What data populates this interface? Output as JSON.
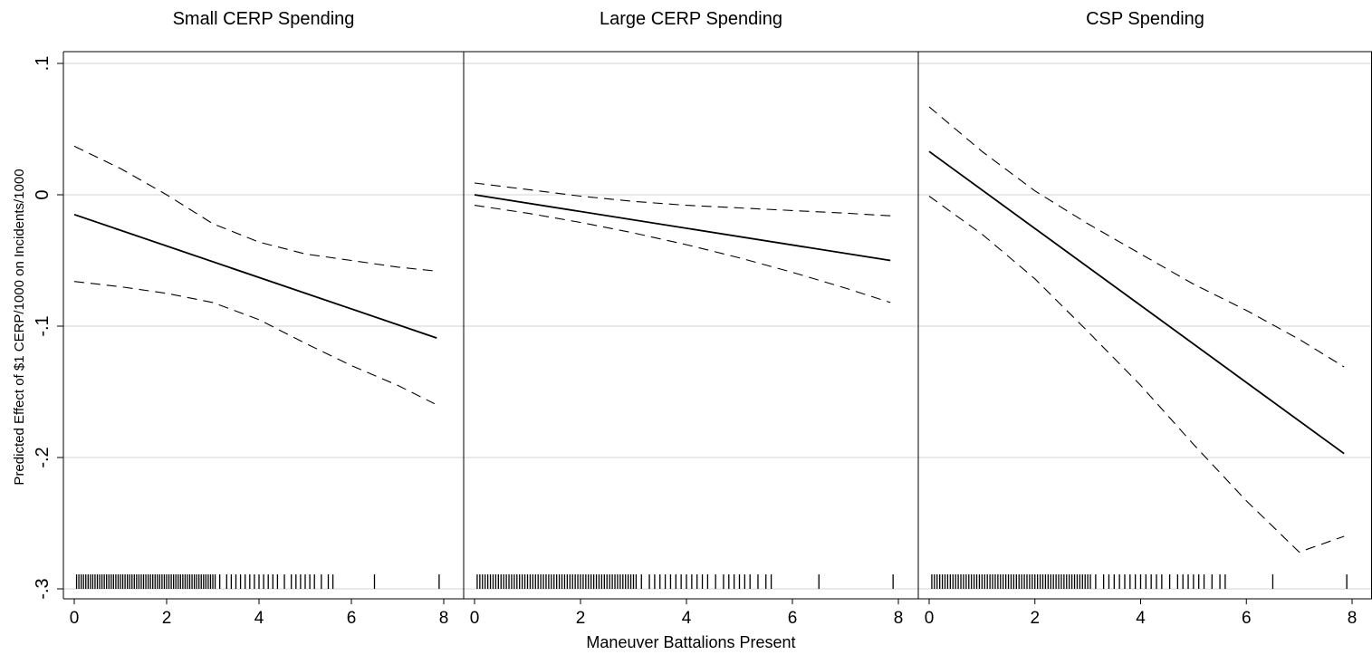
{
  "chart_data": {
    "type": "line",
    "xlabel": "Maneuver Battalions Present",
    "ylabel": "Predicted Effect of $1 CERP/1000 on Incidents/1000",
    "xlim": [
      0,
      8
    ],
    "ylim": [
      -0.3,
      0.1
    ],
    "x_ticks": [
      0,
      2,
      4,
      6,
      8
    ],
    "y_ticks": [
      -0.3,
      -0.2,
      -0.1,
      0,
      0.1
    ],
    "y_tick_labels": [
      "-.3",
      "-.2",
      "-.1",
      "0",
      ".1"
    ],
    "grid": "horizontal",
    "panels": [
      {
        "title": "Small CERP Spending",
        "series": [
          {
            "role": "estimate",
            "style": "solid",
            "x": [
              0,
              7.85
            ],
            "y": [
              -0.015,
              -0.109
            ]
          },
          {
            "role": "upper",
            "style": "dashed",
            "x": [
              0,
              1,
              2,
              3,
              4,
              5,
              6,
              7,
              7.8
            ],
            "y": [
              0.037,
              0.02,
              0.0,
              -0.022,
              -0.036,
              -0.045,
              -0.05,
              -0.055,
              -0.058
            ]
          },
          {
            "role": "lower",
            "style": "dashed",
            "x": [
              0,
              1,
              2,
              3,
              4,
              5,
              6,
              7,
              7.8
            ],
            "y": [
              -0.066,
              -0.07,
              -0.075,
              -0.082,
              -0.095,
              -0.113,
              -0.13,
              -0.145,
              -0.159
            ]
          }
        ]
      },
      {
        "title": "Large CERP Spending",
        "series": [
          {
            "role": "estimate",
            "style": "solid",
            "x": [
              0,
              7.85
            ],
            "y": [
              0.0,
              -0.05
            ]
          },
          {
            "role": "upper",
            "style": "dashed",
            "x": [
              0,
              1,
              2,
              3,
              4,
              5,
              6,
              7,
              7.85
            ],
            "y": [
              0.009,
              0.004,
              -0.001,
              -0.005,
              -0.008,
              -0.01,
              -0.012,
              -0.014,
              -0.016
            ]
          },
          {
            "role": "lower",
            "style": "dashed",
            "x": [
              0,
              1,
              2,
              3,
              4,
              5,
              6,
              7,
              7.85
            ],
            "y": [
              -0.008,
              -0.014,
              -0.021,
              -0.029,
              -0.038,
              -0.048,
              -0.059,
              -0.071,
              -0.082
            ]
          }
        ]
      },
      {
        "title": "CSP Spending",
        "series": [
          {
            "role": "estimate",
            "style": "solid",
            "x": [
              0,
              7.85
            ],
            "y": [
              0.033,
              -0.197
            ]
          },
          {
            "role": "upper",
            "style": "dashed",
            "x": [
              0,
              1,
              2,
              3,
              4,
              5,
              6,
              7,
              7.85
            ],
            "y": [
              0.067,
              0.033,
              0.003,
              -0.022,
              -0.045,
              -0.068,
              -0.088,
              -0.11,
              -0.131
            ]
          },
          {
            "role": "lower",
            "style": "dashed",
            "x": [
              0,
              1,
              2,
              3,
              4,
              5,
              6,
              7,
              7.85
            ],
            "y": [
              -0.001,
              -0.03,
              -0.064,
              -0.104,
              -0.145,
              -0.19,
              -0.233,
              -0.272,
              -0.26
            ]
          }
        ]
      }
    ],
    "rug_x": [
      0.05,
      0.1,
      0.15,
      0.2,
      0.25,
      0.3,
      0.35,
      0.4,
      0.45,
      0.5,
      0.55,
      0.6,
      0.65,
      0.7,
      0.75,
      0.8,
      0.85,
      0.9,
      0.95,
      1.0,
      1.05,
      1.1,
      1.15,
      1.2,
      1.25,
      1.3,
      1.35,
      1.4,
      1.45,
      1.5,
      1.55,
      1.6,
      1.65,
      1.7,
      1.75,
      1.8,
      1.85,
      1.9,
      1.95,
      2.0,
      2.05,
      2.1,
      2.15,
      2.2,
      2.25,
      2.3,
      2.35,
      2.4,
      2.45,
      2.5,
      2.55,
      2.6,
      2.65,
      2.7,
      2.75,
      2.8,
      2.85,
      2.9,
      2.95,
      3.0,
      3.05,
      3.15,
      3.3,
      3.4,
      3.5,
      3.6,
      3.7,
      3.8,
      3.9,
      4.0,
      4.1,
      4.2,
      4.3,
      4.4,
      4.55,
      4.7,
      4.8,
      4.9,
      5.0,
      5.1,
      5.2,
      5.35,
      5.5,
      5.6,
      6.5,
      7.9
    ]
  }
}
